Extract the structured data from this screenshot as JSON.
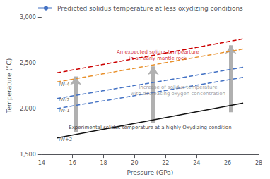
{
  "chart_data": {
    "type": "line",
    "xlabel": "Pressure (GPa)",
    "ylabel": "Temperature (°C)",
    "xlim": [
      14,
      28
    ],
    "ylim": [
      1500,
      3000
    ],
    "xticks": [
      14,
      16,
      18,
      20,
      22,
      24,
      26,
      28
    ],
    "yticks": [
      1500,
      2000,
      2500,
      3000
    ],
    "grid": false,
    "legend": "upper left",
    "series": [
      {
        "x": [
          15,
          27
        ],
        "values": [
          1680,
          2060
        ],
        "color": "#111111",
        "line_style": "solid"
      },
      {
        "name": "Predicted solidus temperature at less oxydizing conditions",
        "x": [
          15,
          27
        ],
        "values": [
          2000,
          2340
        ],
        "color": "#4472c4",
        "line_style": "dashed"
      },
      {
        "x": [
          15,
          27
        ],
        "values": [
          2110,
          2450
        ],
        "color": "#4472c4",
        "line_style": "dashed"
      },
      {
        "x": [
          15,
          27
        ],
        "values": [
          2290,
          2650
        ],
        "color": "#e8912d",
        "line_style": "dashed"
      },
      {
        "x": [
          15,
          27
        ],
        "values": [
          2390,
          2760
        ],
        "color": "#cc0000",
        "line_style": "dashed"
      }
    ],
    "iw_labels": [
      {
        "text": "IW+2",
        "x": 15.1,
        "y": 1660,
        "color": "#333333"
      },
      {
        "text": "IW-1",
        "x": 15.1,
        "y": 1975,
        "color": "#333333"
      },
      {
        "text": "IW-2",
        "x": 15.1,
        "y": 2090,
        "color": "#333333"
      },
      {
        "text": "IW-4",
        "x": 15.1,
        "y": 2265,
        "color": "#333333"
      }
    ],
    "annotations": [
      {
        "text": "An expected solidus tempearture\nin an early mantle rock",
        "x": 21.5,
        "y": 2580,
        "color": "#cc0000"
      },
      {
        "text": "Experimental solidus temperature at a highly Oxydizing condition",
        "x": 21.0,
        "y": 1790,
        "color": "#111111"
      },
      {
        "text": "Increase of solidus temperature\nwith decreasing oxygen concentration",
        "x": 22.8,
        "y": 2195,
        "color": "#888888"
      }
    ],
    "arrows": [
      {
        "x": 16.2,
        "y_bottom": 1740,
        "y_top": 2350,
        "color": "#b0b0b0"
      },
      {
        "x": 21.2,
        "y_bottom": 1840,
        "y_top": 2460,
        "color": "#b0b0b0"
      },
      {
        "x": 26.2,
        "y_bottom": 1960,
        "y_top": 2690,
        "color": "#b0b0b0"
      }
    ]
  }
}
